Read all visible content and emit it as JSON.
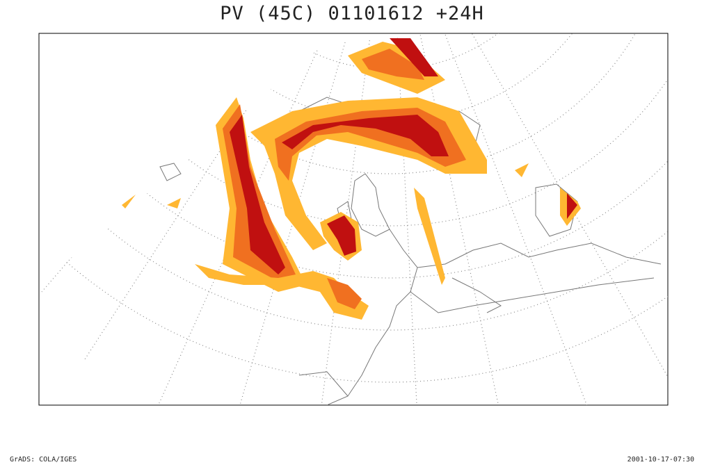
{
  "header": {
    "title": "PV (45C) 01101612 +24H"
  },
  "footer": {
    "left": "GrADS: COLA/IGES",
    "right": "2001-10-17-07:30"
  }
}
